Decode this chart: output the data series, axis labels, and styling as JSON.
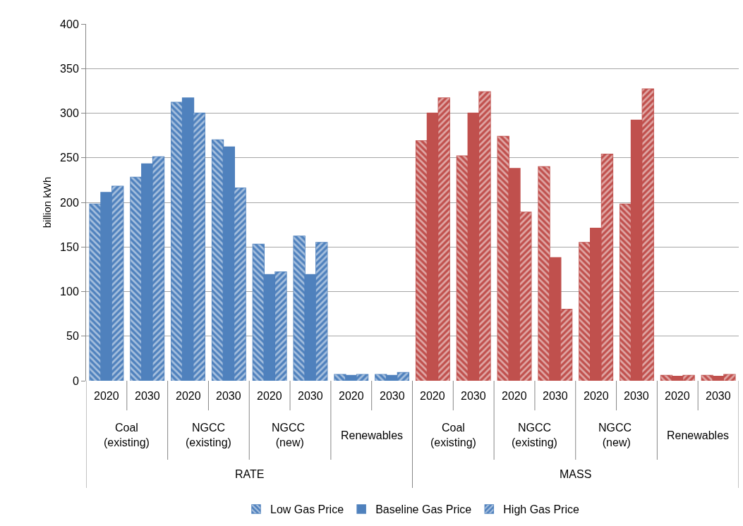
{
  "chart_data": {
    "type": "bar",
    "ylabel": "billion kWh",
    "categories": [
      "2020",
      "2030",
      "2020",
      "2030",
      "2020",
      "2030",
      "2020",
      "2030",
      "2020",
      "2030",
      "2020",
      "2030",
      "2020",
      "2030",
      "2020",
      "2030"
    ],
    "annotations": [
      "Coal (existing)",
      "NGCC (existing)",
      "NGCC  (new)",
      "Renewables",
      "Coal (existing)",
      "NGCC (existing)",
      "NGCC  (new)",
      "Renewables",
      "RATE",
      "MASS"
    ],
    "series": [
      {
        "name": "Low Gas Price",
        "colors": [
          "#4f81bd",
          "#4f81bd",
          "#4f81bd",
          "#4f81bd",
          "#4f81bd",
          "#4f81bd",
          "#4f81bd",
          "#4f81bd",
          "#c0504d",
          "#c0504d",
          "#c0504d",
          "#c0504d",
          "#c0504d",
          "#c0504d",
          "#c0504d",
          "#c0504d"
        ],
        "values": [
          198,
          228,
          312,
          270,
          153,
          162,
          7,
          7,
          269,
          252,
          274,
          240,
          155,
          198,
          6,
          6
        ]
      },
      {
        "name": "Baseline Gas Price",
        "colors": [
          "#4f81bd",
          "#4f81bd",
          "#4f81bd",
          "#4f81bd",
          "#4f81bd",
          "#4f81bd",
          "#4f81bd",
          "#4f81bd",
          "#c0504d",
          "#c0504d",
          "#c0504d",
          "#c0504d",
          "#c0504d",
          "#c0504d",
          "#c0504d",
          "#c0504d"
        ],
        "values": [
          211,
          243,
          317,
          262,
          119,
          119,
          6,
          6,
          300,
          300,
          238,
          138,
          171,
          292,
          5,
          5
        ]
      },
      {
        "name": "High Gas Price",
        "colors": [
          "#4f81bd",
          "#4f81bd",
          "#4f81bd",
          "#4f81bd",
          "#4f81bd",
          "#4f81bd",
          "#4f81bd",
          "#4f81bd",
          "#c0504d",
          "#c0504d",
          "#c0504d",
          "#c0504d",
          "#c0504d",
          "#c0504d",
          "#c0504d",
          "#c0504d"
        ],
        "values": [
          218,
          251,
          300,
          216,
          122,
          155,
          7,
          9,
          317,
          324,
          189,
          80,
          254,
          327,
          6,
          7
        ]
      }
    ],
    "ylim": [
      0,
      400
    ],
    "yticks": [
      0,
      50,
      100,
      150,
      200,
      250,
      300,
      350,
      400
    ],
    "grid": "y",
    "legend": "bottom"
  }
}
